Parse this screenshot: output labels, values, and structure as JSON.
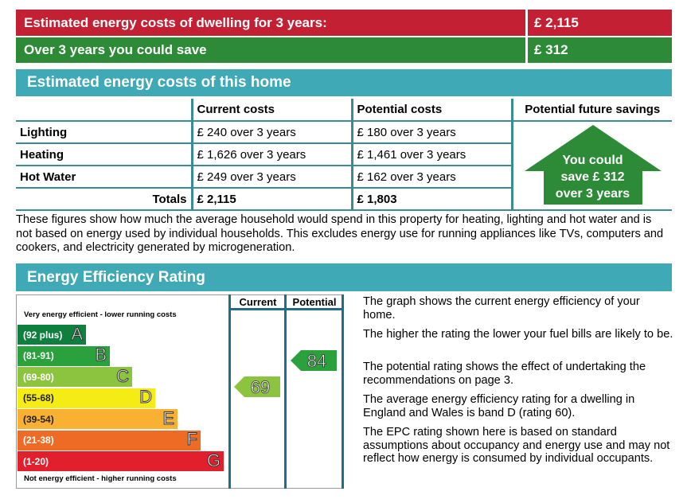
{
  "summary": {
    "est_label": "Estimated energy costs of dwelling for 3 years:",
    "est_value": "£ 2,115",
    "save_label": "Over 3 years you could save",
    "save_value": "£ 312",
    "est_color": "#c32033",
    "save_color": "#2d8a37"
  },
  "costs_section": {
    "title": "Estimated energy costs of this home",
    "headers": {
      "current": "Current costs",
      "potential": "Potential costs",
      "savings": "Potential future savings"
    },
    "rows": [
      {
        "item": "Lighting",
        "current": "£ 240 over 3 years",
        "potential": "£ 180 over 3 years"
      },
      {
        "item": "Heating",
        "current": "£ 1,626 over 3 years",
        "potential": "£ 1,461 over 3 years"
      },
      {
        "item": "Hot Water",
        "current": "£ 249 over 3 years",
        "potential": "£ 162 over 3 years"
      }
    ],
    "totals": {
      "label": "Totals",
      "current": "£ 2,115",
      "potential": "£ 1,803"
    },
    "savings_arrow": {
      "line1": "You could",
      "line2": "save £ 312",
      "line3": "over 3 years"
    }
  },
  "explanation": "These figures show how much the average household would spend in this property for heating, lighting and hot water and is not based on energy used by individual households. This excludes energy use for running appliances like TVs, computers and cookers, and electricity generated by microgeneration.",
  "rating_section": {
    "title": "Energy Efficiency Rating",
    "col_current": "Current",
    "col_potential": "Potential",
    "top_note": "Very energy efficient - lower running costs",
    "bottom_note": "Not energy efficient - higher running costs",
    "bands": [
      {
        "range": "(92 plus)",
        "letter": "A",
        "color": "#0e7f3f"
      },
      {
        "range": "(81-91)",
        "letter": "B",
        "color": "#2aa13d"
      },
      {
        "range": "(69-80)",
        "letter": "C",
        "color": "#8cc43f"
      },
      {
        "range": "(55-68)",
        "letter": "D",
        "color": "#f6ec15"
      },
      {
        "range": "(39-54)",
        "letter": "E",
        "color": "#f9b033"
      },
      {
        "range": "(21-38)",
        "letter": "F",
        "color": "#ee6b26"
      },
      {
        "range": "(1-20)",
        "letter": "G",
        "color": "#e21f2d"
      }
    ],
    "current_rating": 69,
    "current_color": "#8cc43f",
    "potential_rating": 84,
    "potential_color": "#2aa13d",
    "notes": [
      "The graph shows the current energy efficiency of your home.",
      "The higher the rating the lower your fuel bills are likely to be.",
      "The potential rating shows the effect of undertaking the recommendations on page 3.",
      "The average energy efficiency rating for a dwelling in England and Wales is band D (rating 60).",
      "The EPC rating shown here is based on standard assumptions about occupancy and energy use and may not reflect how energy is consumed by individual occupants."
    ]
  }
}
